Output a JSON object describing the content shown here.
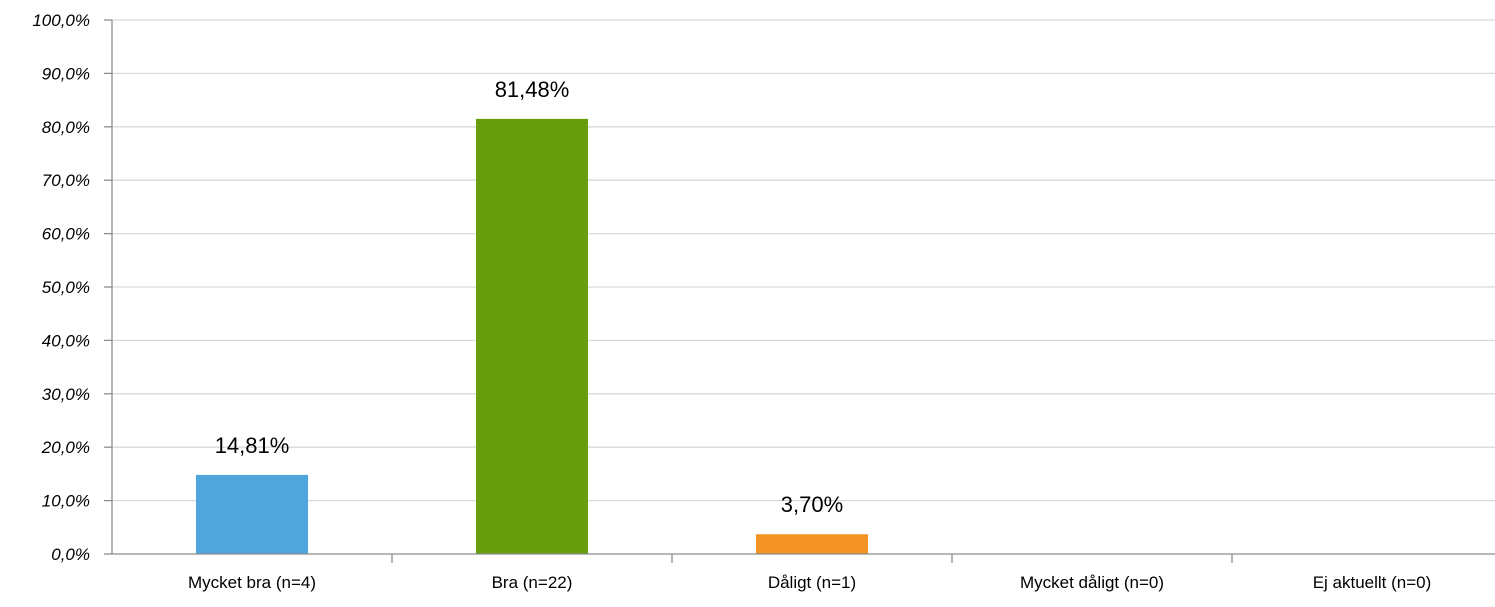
{
  "chart_data": {
    "type": "bar",
    "title": "",
    "xlabel": "",
    "ylabel": "",
    "ylim": [
      0,
      100
    ],
    "y_ticks": [
      "0,0%",
      "10,0%",
      "20,0%",
      "30,0%",
      "40,0%",
      "50,0%",
      "60,0%",
      "70,0%",
      "80,0%",
      "90,0%",
      "100,0%"
    ],
    "grid": true,
    "legend": "none",
    "categories": [
      "Mycket bra (n=4)",
      "Bra (n=22)",
      "Dåligt (n=1)",
      "Mycket dåligt (n=0)",
      "Ej aktuellt (n=0)"
    ],
    "values": [
      14.81,
      81.48,
      3.7,
      0,
      0
    ],
    "data_labels": [
      "14,81%",
      "81,48%",
      "3,70%",
      "",
      ""
    ],
    "colors": [
      "#4ea6dc",
      "#669e0e",
      "#f39325",
      "#cccccc",
      "#cccccc"
    ]
  }
}
